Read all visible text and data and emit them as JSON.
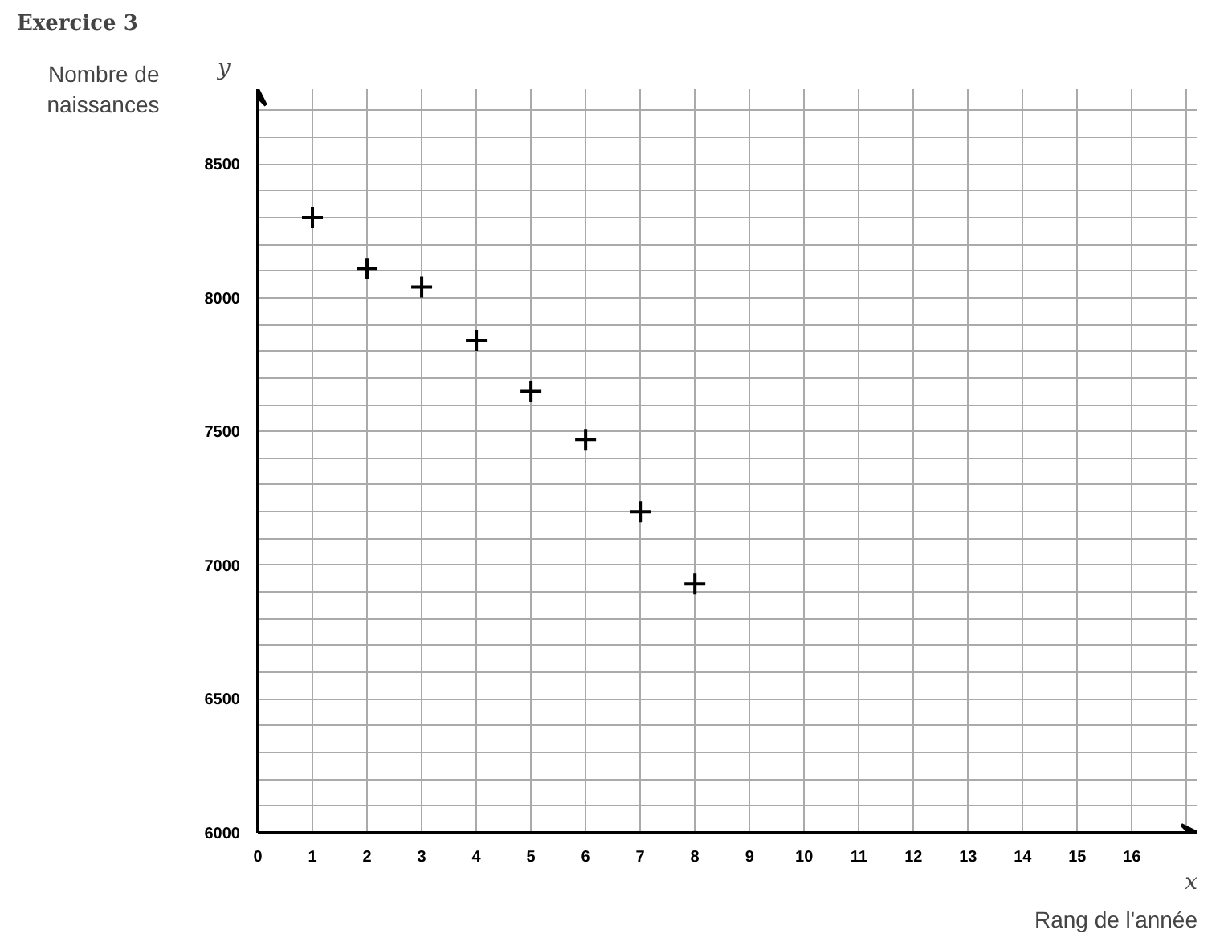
{
  "chart_data": {
    "type": "scatter",
    "title": "Exercice 3",
    "xlabel": "Rang de l'année",
    "ylabel": "Nombre de naissances",
    "annotations": [
      "x",
      "y"
    ],
    "x": [
      1,
      2,
      3,
      4,
      5,
      6,
      7,
      8
    ],
    "values": [
      8300,
      8110,
      8040,
      7840,
      7650,
      7470,
      7200,
      6930
    ],
    "color": "#000000",
    "marker": "cross",
    "grid": true,
    "legend": false,
    "xlim": [
      0,
      17.2
    ],
    "ylim": [
      6000,
      8780
    ],
    "xticks": [
      0,
      1,
      2,
      3,
      4,
      5,
      6,
      7,
      8,
      9,
      10,
      11,
      12,
      13,
      14,
      15,
      16,
      {
        "value": 17,
        "label": null
      }
    ],
    "yticks": [
      6000,
      {
        "value": 6100,
        "label": null
      },
      {
        "value": 6200,
        "label": null
      },
      {
        "value": 6300,
        "label": null
      },
      {
        "value": 6400,
        "label": null
      },
      6500,
      {
        "value": 6600,
        "label": null
      },
      {
        "value": 6700,
        "label": null
      },
      {
        "value": 6800,
        "label": null
      },
      {
        "value": 6900,
        "label": null
      },
      7000,
      {
        "value": 7100,
        "label": null
      },
      {
        "value": 7200,
        "label": null
      },
      {
        "value": 7300,
        "label": null
      },
      {
        "value": 7400,
        "label": null
      },
      7500,
      {
        "value": 7600,
        "label": null
      },
      {
        "value": 7700,
        "label": null
      },
      {
        "value": 7800,
        "label": null
      },
      {
        "value": 7900,
        "label": null
      },
      8000,
      {
        "value": 8100,
        "label": null
      },
      {
        "value": 8200,
        "label": null
      },
      {
        "value": 8300,
        "label": null
      },
      {
        "value": 8400,
        "label": null
      },
      8500,
      {
        "value": 8600,
        "label": null
      },
      {
        "value": 8700,
        "label": null
      }
    ]
  }
}
